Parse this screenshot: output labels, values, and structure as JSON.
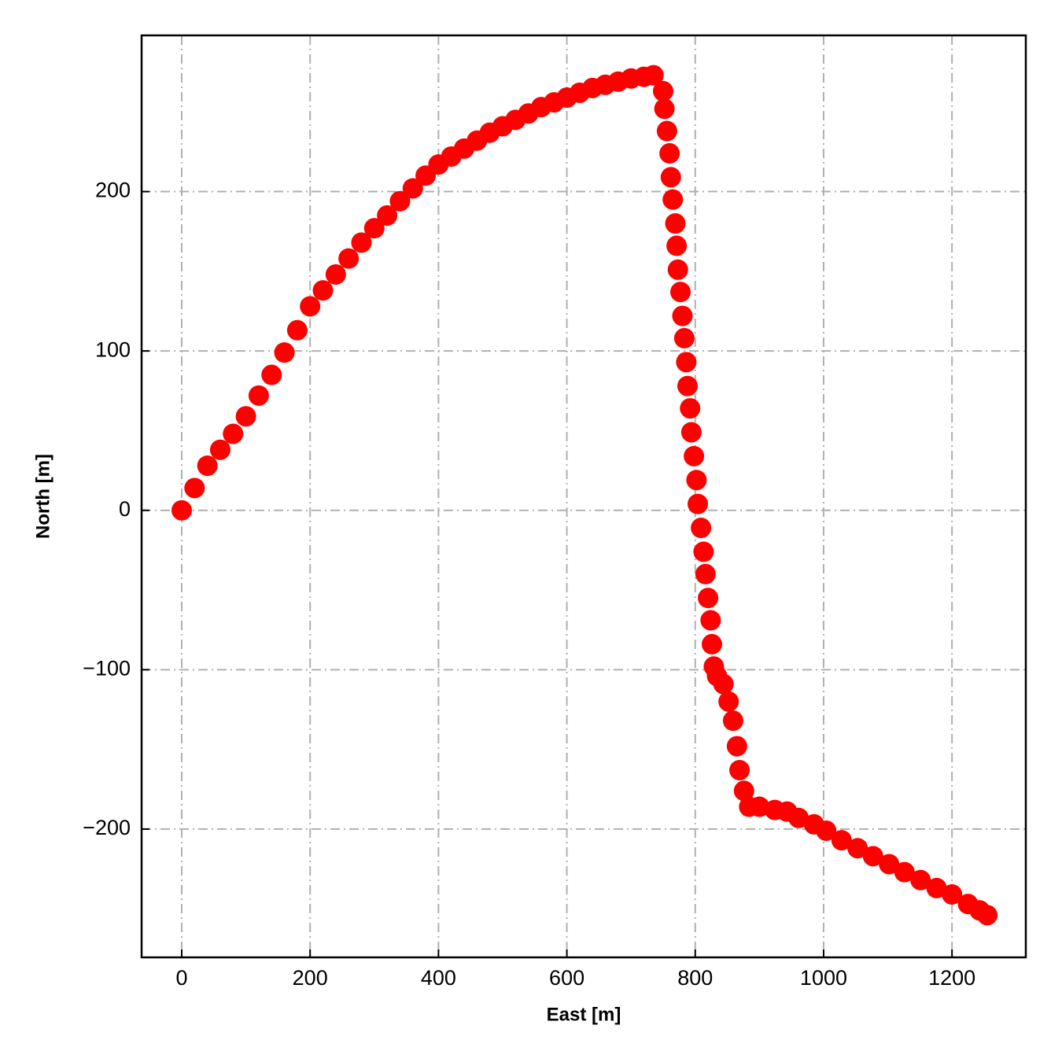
{
  "chart_data": {
    "type": "scatter",
    "x_label": "East [m]",
    "y_label": "North [m]",
    "xlim": [
      -62.5,
      1315
    ],
    "ylim": [
      -280.5,
      298
    ],
    "xticks": [
      0,
      200,
      400,
      600,
      800,
      1000,
      1200
    ],
    "yticks": [
      {
        "value": -200,
        "label": "−200"
      },
      {
        "value": -100,
        "label": "−100"
      },
      0,
      100,
      200
    ],
    "grid": true,
    "series": [
      {
        "color": "#ff0000",
        "x": [
          0,
          20,
          40,
          60,
          80,
          100,
          120,
          140,
          160,
          180,
          200,
          220,
          240,
          260,
          280,
          300,
          320,
          340,
          360,
          380,
          400,
          420,
          440,
          460,
          480,
          500,
          520,
          540,
          560,
          580,
          600,
          620,
          640,
          660,
          680,
          700,
          720,
          735,
          750,
          752,
          756,
          760,
          762,
          765,
          769,
          771,
          773,
          777,
          780,
          783,
          786,
          788,
          792,
          794,
          798,
          802,
          804,
          809,
          813,
          816,
          820,
          824,
          826,
          829,
          834,
          844,
          852,
          859,
          865,
          869,
          876,
          884,
          900,
          924,
          943,
          961,
          985,
          1004,
          1028,
          1053,
          1077,
          1102,
          1126,
          1151,
          1176,
          1200,
          1225,
          1243,
          1255
        ],
        "y": [
          0,
          14,
          28,
          38,
          48,
          59,
          72,
          85,
          99,
          113,
          128,
          138,
          148,
          158,
          168,
          177,
          185,
          194,
          202,
          210,
          217,
          222,
          227,
          232,
          237,
          241,
          245,
          249,
          253,
          256,
          259,
          262,
          265,
          267,
          269,
          271,
          272,
          273,
          263,
          252,
          238,
          224,
          209,
          195,
          180,
          166,
          151,
          137,
          122,
          108,
          93,
          78,
          64,
          49,
          34,
          19,
          4,
          -11,
          -26,
          -40,
          -55,
          -69,
          -84,
          -98,
          -104,
          -109,
          -120,
          -132,
          -148,
          -163,
          -176,
          -186,
          -186,
          -188,
          -189,
          -193,
          -197,
          -201,
          -207,
          -212,
          -217,
          -222,
          -227,
          -232,
          -237,
          -241,
          -247,
          -251,
          -254
        ]
      }
    ]
  }
}
